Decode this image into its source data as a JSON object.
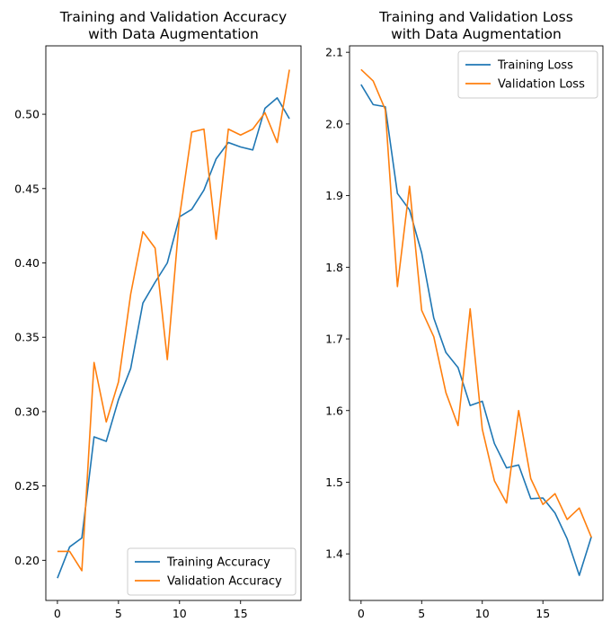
{
  "colors": {
    "training": "#1f77b4",
    "validation": "#ff7f0e"
  },
  "chart_data": [
    {
      "type": "line",
      "title": "Training and Validation Accuracy\nwith Data Augmentation",
      "xlabel": "",
      "ylabel": "",
      "xlim": [
        -0.95,
        19.95
      ],
      "ylim": [
        0.173,
        0.546
      ],
      "xticks": [
        0,
        5,
        10,
        15
      ],
      "yticks": [
        0.2,
        0.25,
        0.3,
        0.35,
        0.4,
        0.45,
        0.5
      ],
      "ytick_format": 2,
      "legend": "lower-right",
      "grid": false,
      "x": [
        0,
        1,
        2,
        3,
        4,
        5,
        6,
        7,
        8,
        9,
        10,
        11,
        12,
        13,
        14,
        15,
        16,
        17,
        18,
        19
      ],
      "series": [
        {
          "name": "Training Accuracy",
          "color_key": "training",
          "values": [
            0.188,
            0.209,
            0.215,
            0.283,
            0.28,
            0.308,
            0.329,
            0.373,
            0.387,
            0.4,
            0.431,
            0.436,
            0.449,
            0.47,
            0.481,
            0.478,
            0.476,
            0.504,
            0.511,
            0.497
          ]
        },
        {
          "name": "Validation Accuracy",
          "color_key": "validation",
          "values": [
            0.206,
            0.206,
            0.193,
            0.333,
            0.293,
            0.32,
            0.379,
            0.421,
            0.41,
            0.335,
            0.431,
            0.488,
            0.49,
            0.416,
            0.49,
            0.486,
            0.49,
            0.501,
            0.481,
            0.53
          ]
        }
      ]
    },
    {
      "type": "line",
      "title": "Training and Validation Loss\nwith Data Augmentation",
      "xlabel": "",
      "ylabel": "",
      "xlim": [
        -0.95,
        19.95
      ],
      "ylim": [
        1.335,
        2.109
      ],
      "xticks": [
        0,
        5,
        10,
        15
      ],
      "yticks": [
        1.4,
        1.5,
        1.6,
        1.7,
        1.8,
        1.9,
        2.0,
        2.1
      ],
      "ytick_format": 1,
      "legend": "upper-right",
      "grid": false,
      "x": [
        0,
        1,
        2,
        3,
        4,
        5,
        6,
        7,
        8,
        9,
        10,
        11,
        12,
        13,
        14,
        15,
        16,
        17,
        18,
        19
      ],
      "series": [
        {
          "name": "Training Loss",
          "color_key": "training",
          "values": [
            2.055,
            2.027,
            2.024,
            1.903,
            1.88,
            1.82,
            1.729,
            1.681,
            1.66,
            1.607,
            1.613,
            1.554,
            1.52,
            1.524,
            1.477,
            1.478,
            1.457,
            1.421,
            1.37,
            1.424
          ]
        },
        {
          "name": "Validation Loss",
          "color_key": "validation",
          "values": [
            2.076,
            2.06,
            2.02,
            1.773,
            1.913,
            1.74,
            1.703,
            1.625,
            1.579,
            1.742,
            1.574,
            1.502,
            1.471,
            1.6,
            1.505,
            1.469,
            1.484,
            1.448,
            1.464,
            1.423
          ]
        }
      ]
    }
  ]
}
